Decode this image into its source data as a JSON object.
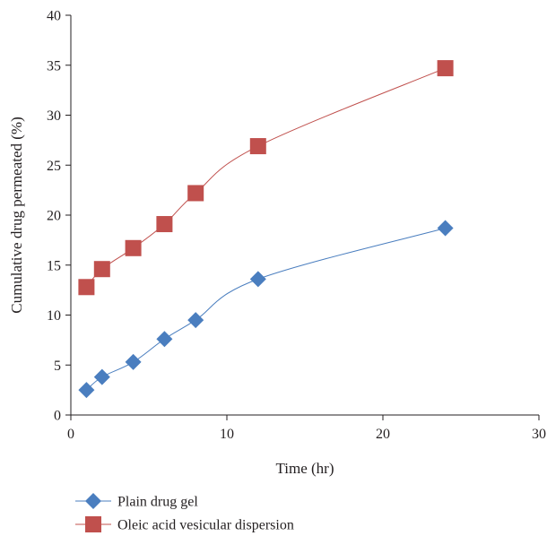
{
  "chart_data": {
    "type": "line",
    "xlabel": "Time (hr)",
    "ylabel": "Cumulative drug permeated (%)",
    "xlim": [
      0,
      30
    ],
    "ylim": [
      0,
      40
    ],
    "xticks": [
      0,
      10,
      20,
      30
    ],
    "yticks": [
      0,
      5,
      10,
      15,
      20,
      25,
      30,
      35,
      40
    ],
    "grid": false,
    "legend_position": "bottom-left",
    "series": [
      {
        "name": "Plain drug gel",
        "color": "#4a7ebf",
        "line_color": "#4a7ebf",
        "marker": "diamond",
        "x": [
          1,
          2,
          4,
          6,
          8,
          12,
          24
        ],
        "y": [
          2.5,
          3.8,
          5.3,
          7.6,
          9.5,
          13.6,
          18.7
        ]
      },
      {
        "name": "Oleic acid vesicular dispersion",
        "color": "#c0504d",
        "line_color": "#c0504d",
        "marker": "square",
        "x": [
          1,
          2,
          4,
          6,
          8,
          12,
          24
        ],
        "y": [
          12.8,
          14.6,
          16.7,
          19.1,
          22.2,
          26.9,
          34.7
        ]
      }
    ]
  }
}
